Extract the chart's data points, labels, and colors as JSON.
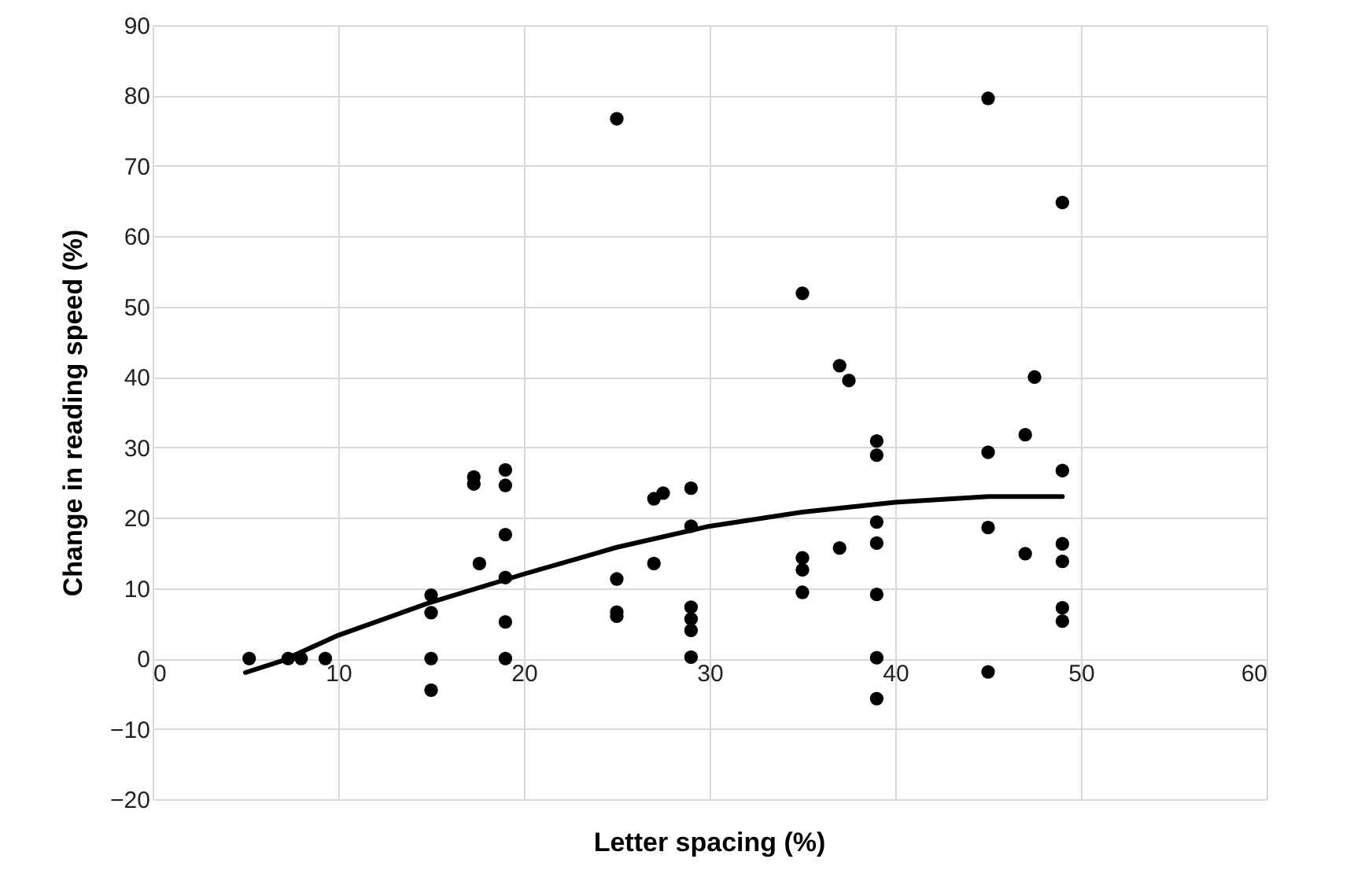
{
  "chart_data": {
    "type": "scatter",
    "xlabel": "Letter spacing (%)",
    "ylabel": "Change in reading speed (%)",
    "xlim": [
      0,
      60
    ],
    "ylim": [
      -20,
      90
    ],
    "xticks": [
      0,
      10,
      20,
      30,
      40,
      50,
      60
    ],
    "yticks": [
      -20,
      -10,
      0,
      10,
      20,
      30,
      40,
      50,
      60,
      70,
      80,
      90
    ],
    "grid": true,
    "series": [
      {
        "color": "#000000",
        "marker": "circle",
        "x": [
          5.2,
          7.3,
          8,
          9.3,
          15,
          15,
          15,
          15,
          17.3,
          17.3,
          17.6,
          19,
          19,
          19,
          19,
          19,
          19,
          25,
          25,
          25,
          25,
          27,
          27.5,
          27,
          29,
          29,
          29,
          29,
          29,
          29,
          35,
          35,
          35,
          35,
          37,
          37.5,
          37,
          39,
          39,
          39,
          39,
          39,
          39,
          39,
          45,
          45,
          45,
          45,
          47,
          47.5,
          47,
          49,
          49,
          49,
          49,
          49,
          49
        ],
        "values": [
          0,
          0,
          0,
          0,
          9,
          6.5,
          0,
          -4.5,
          25.8,
          24.8,
          13.5,
          26.8,
          24.6,
          17.6,
          11.5,
          5.2,
          0,
          76.7,
          11.3,
          6.6,
          6,
          22.7,
          23.5,
          13.5,
          24.2,
          18.8,
          7.3,
          5.6,
          4,
          0.2,
          51.9,
          14.3,
          12.6,
          9.4,
          41.6,
          39.5,
          15.7,
          30.9,
          28.9,
          19.4,
          16.4,
          9.1,
          0.1,
          -5.7,
          79.6,
          29.3,
          18.6,
          -1.9,
          31.8,
          40,
          14.9,
          64.8,
          26.7,
          16.3,
          13.8,
          7.2,
          5.3
        ]
      },
      {
        "type": "line",
        "color": "#000000",
        "line_style": "solid",
        "x": [
          5,
          7,
          10,
          15,
          20,
          25,
          30,
          35,
          40,
          45,
          49
        ],
        "values": [
          -2,
          -0.3,
          3.3,
          8,
          12,
          15.8,
          18.8,
          20.8,
          22.2,
          23,
          23
        ]
      }
    ]
  }
}
